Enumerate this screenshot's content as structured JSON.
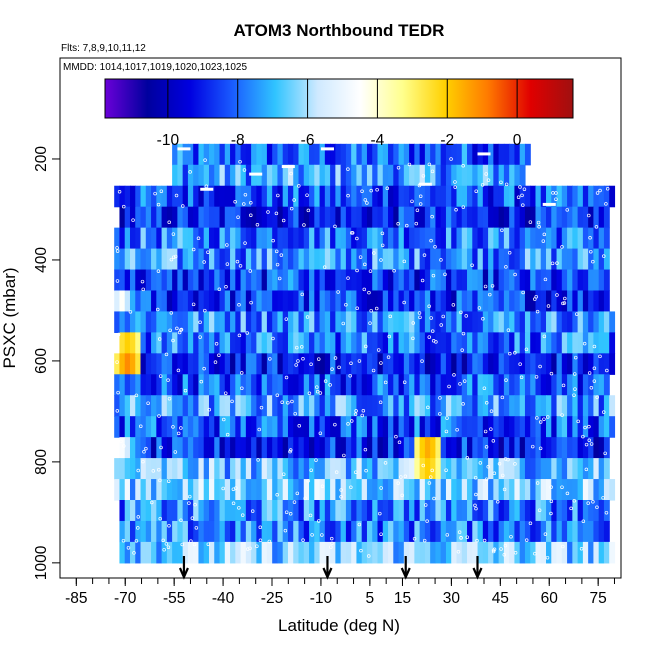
{
  "chart_data": {
    "type": "heatmap",
    "title": "ATOM3 Northbound TEDR",
    "flights_label": "Flts: 7,8,9,10,11,12",
    "dates_label": "MMDD: 1014,1017,1019,1020,1023,1025",
    "xlabel": "Latitude (deg N)",
    "ylabel": "PSXC (mbar)",
    "xlim": [
      -90,
      82
    ],
    "ylim": [
      1030,
      0
    ],
    "x_ticks": [
      -85,
      -70,
      -55,
      -40,
      -25,
      -10,
      5,
      15,
      30,
      45,
      60,
      75
    ],
    "y_ticks": [
      200,
      400,
      600,
      800,
      1000
    ],
    "colorbar": {
      "min": -11.8,
      "max": 1.6,
      "ticks": [
        -10,
        -8,
        -6,
        -4,
        -2,
        0
      ],
      "colors": [
        "#6a00d8",
        "#00009e",
        "#0000e0",
        "#1a5cff",
        "#30c4ff",
        "#cfe9ff",
        "#ffffff",
        "#ffff8c",
        "#ffd000",
        "#ff7a00",
        "#e00000",
        "#a01010"
      ]
    },
    "profile_arrows_lat": [
      -52,
      -8,
      16,
      38
    ],
    "hotspots": [
      {
        "lat": -70,
        "pressure": 590,
        "value": 0.5
      },
      {
        "lat": 22,
        "pressure": 790,
        "value": 0.3
      },
      {
        "lat": -72,
        "pressure": 480,
        "value": -4.2
      },
      {
        "lat": -72,
        "pressure": 780,
        "value": -3.8
      },
      {
        "lat": -20,
        "pressure": 430,
        "value": -6.0
      }
    ],
    "lat_range": [
      -75,
      80
    ],
    "pressure_range": [
      170,
      1000
    ]
  }
}
